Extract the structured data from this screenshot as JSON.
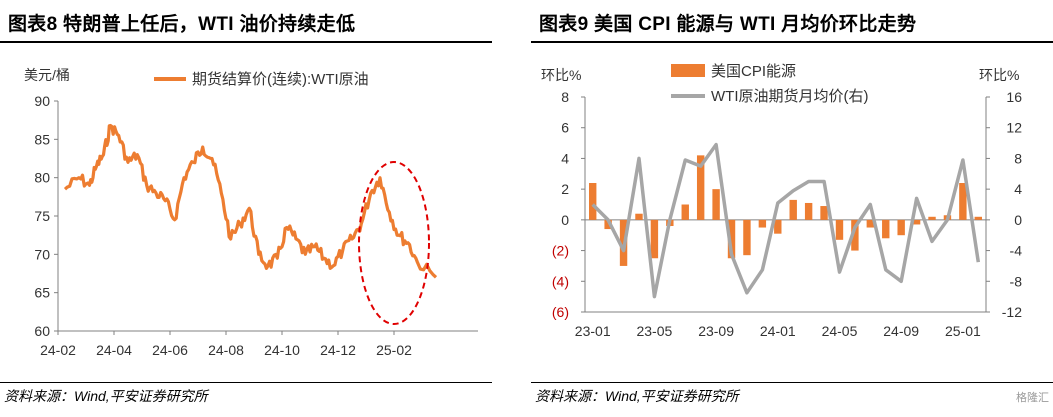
{
  "chart_data": [
    {
      "type": "line",
      "title": "图表8 特朗普上任后，WTI 油价持续走低",
      "ylabel": "美元/桶",
      "ylim": [
        60,
        90
      ],
      "yticks": [
        60,
        65,
        70,
        75,
        80,
        85,
        90
      ],
      "xticks": [
        "24-02",
        "24-04",
        "24-06",
        "24-08",
        "24-10",
        "24-12",
        "25-02"
      ],
      "series": [
        {
          "name": "期货结算价(连续):WTI原油",
          "color": "#ED7D31",
          "x": [
            "24-02",
            "24-02",
            "24-03",
            "24-03",
            "24-03",
            "24-03",
            "24-04",
            "24-04",
            "24-04",
            "24-05",
            "24-05",
            "24-05",
            "24-06",
            "24-06",
            "24-06",
            "24-07",
            "24-07",
            "24-07",
            "24-08",
            "24-08",
            "24-08",
            "24-09",
            "24-09",
            "24-09",
            "24-10",
            "24-10",
            "24-10",
            "24-11",
            "24-11",
            "24-11",
            "24-12",
            "24-12",
            "24-12",
            "25-01",
            "25-01",
            "25-01",
            "25-02",
            "25-02",
            "25-02",
            "25-03"
          ],
          "values": [
            78.5,
            80.0,
            79.0,
            81.5,
            83.0,
            86.8,
            85.5,
            82.0,
            83.0,
            79.0,
            78.0,
            77.0,
            74.5,
            80.0,
            82.0,
            84.0,
            82.5,
            78.0,
            72.0,
            74.0,
            76.0,
            70.0,
            68.5,
            69.5,
            73.5,
            72.0,
            70.0,
            71.0,
            69.5,
            68.5,
            70.5,
            72.0,
            74.0,
            78.0,
            80.0,
            75.5,
            72.5,
            71.5,
            69.0,
            67.0
          ]
        }
      ],
      "annotation": "red dashed ellipse around 25-01 to 25-03"
    },
    {
      "type": "bar",
      "title": "图表9 美国 CPI 能源与 WTI 月均价环比走势",
      "ylabel": "环比%",
      "ylabel_right": "环比%",
      "ylim": [
        -6,
        8
      ],
      "ylim_right": [
        -12,
        16
      ],
      "yticks": [
        "8",
        "6",
        "4",
        "2",
        "0",
        "(2)",
        "(4)",
        "(6)"
      ],
      "yticks_right": [
        "16",
        "12",
        "8",
        "4",
        "0",
        "-4",
        "-8",
        "-12"
      ],
      "xticks": [
        "23-01",
        "23-05",
        "23-09",
        "24-01",
        "24-05",
        "24-09",
        "25-01"
      ],
      "categories": [
        "23-01",
        "23-02",
        "23-03",
        "23-04",
        "23-05",
        "23-06",
        "23-07",
        "23-08",
        "23-09",
        "23-10",
        "23-11",
        "23-12",
        "24-01",
        "24-02",
        "24-03",
        "24-04",
        "24-05",
        "24-06",
        "24-07",
        "24-08",
        "24-09",
        "24-10",
        "24-11",
        "24-12",
        "25-01",
        "25-02"
      ],
      "series": [
        {
          "name": "美国CPI能源",
          "type": "bar",
          "axis": "left",
          "color": "#ED7D31",
          "values": [
            2.4,
            -0.6,
            -3.0,
            0.4,
            -2.5,
            -0.4,
            1.0,
            4.2,
            2.0,
            -2.5,
            -2.3,
            -0.5,
            -0.9,
            1.3,
            1.1,
            0.9,
            -1.3,
            -2.0,
            -0.5,
            -1.2,
            -1.0,
            -0.3,
            0.2,
            0.3,
            2.4,
            0.2
          ]
        },
        {
          "name": "WTI原油期货月均价(右)",
          "type": "line",
          "axis": "right",
          "color": "#A6A6A6",
          "values": [
            2.0,
            0.0,
            -4.0,
            8.0,
            -10.0,
            0.0,
            7.8,
            7.0,
            9.8,
            -4.5,
            -9.5,
            -6.5,
            2.2,
            3.8,
            5.0,
            5.0,
            -6.8,
            -1.0,
            2.0,
            -6.5,
            -8.0,
            2.8,
            -2.8,
            0.0,
            7.8,
            -5.5
          ]
        }
      ]
    }
  ],
  "sources": {
    "left": "资料来源：Wind,平安证券研究所",
    "right": "资料来源：Wind,平安证券研究所"
  },
  "watermark": "格隆汇"
}
